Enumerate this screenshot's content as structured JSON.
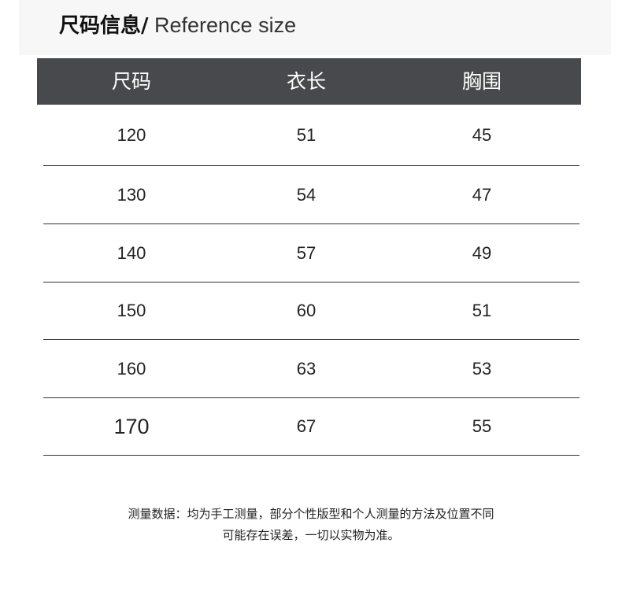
{
  "header": {
    "title_zh": "尺码信息/",
    "title_en": " Reference size"
  },
  "table": {
    "columns": [
      "尺码",
      "衣长",
      "胸围"
    ],
    "rows": [
      [
        "120",
        "51",
        "45"
      ],
      [
        "130",
        "54",
        "47"
      ],
      [
        "140",
        "57",
        "49"
      ],
      [
        "150",
        "60",
        "51"
      ],
      [
        "160",
        "63",
        "53"
      ],
      [
        "170",
        "67",
        "55"
      ]
    ]
  },
  "note": {
    "line1": "测量数据：均为手工测量，部分个性版型和个人测量的方法及位置不同",
    "line2": "可能存在误差，一切以实物为准。"
  },
  "colors": {
    "header_bg": "#48494c",
    "title_band": "#f7f7f7"
  }
}
